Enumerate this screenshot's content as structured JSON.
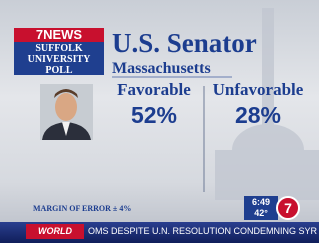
{
  "logo": {
    "station": "7NEWS",
    "poll": "SUFFOLK UNIVERSITY POLL"
  },
  "header": {
    "title": "U.S. Senator",
    "subtitle": "Massachusetts"
  },
  "results": {
    "columns": [
      {
        "label": "Favorable",
        "value": "52%"
      },
      {
        "label": "Unfavorable",
        "value": "28%"
      }
    ]
  },
  "footnote": "MARGIN OF ERROR ± 4%",
  "bug": {
    "time": "6:49",
    "temperature": "42°",
    "channel": "7"
  },
  "ticker": {
    "tag": "WORLD",
    "text": "OMS DESPITE U.N. RESOLUTION CONDEMNING SYR"
  }
}
